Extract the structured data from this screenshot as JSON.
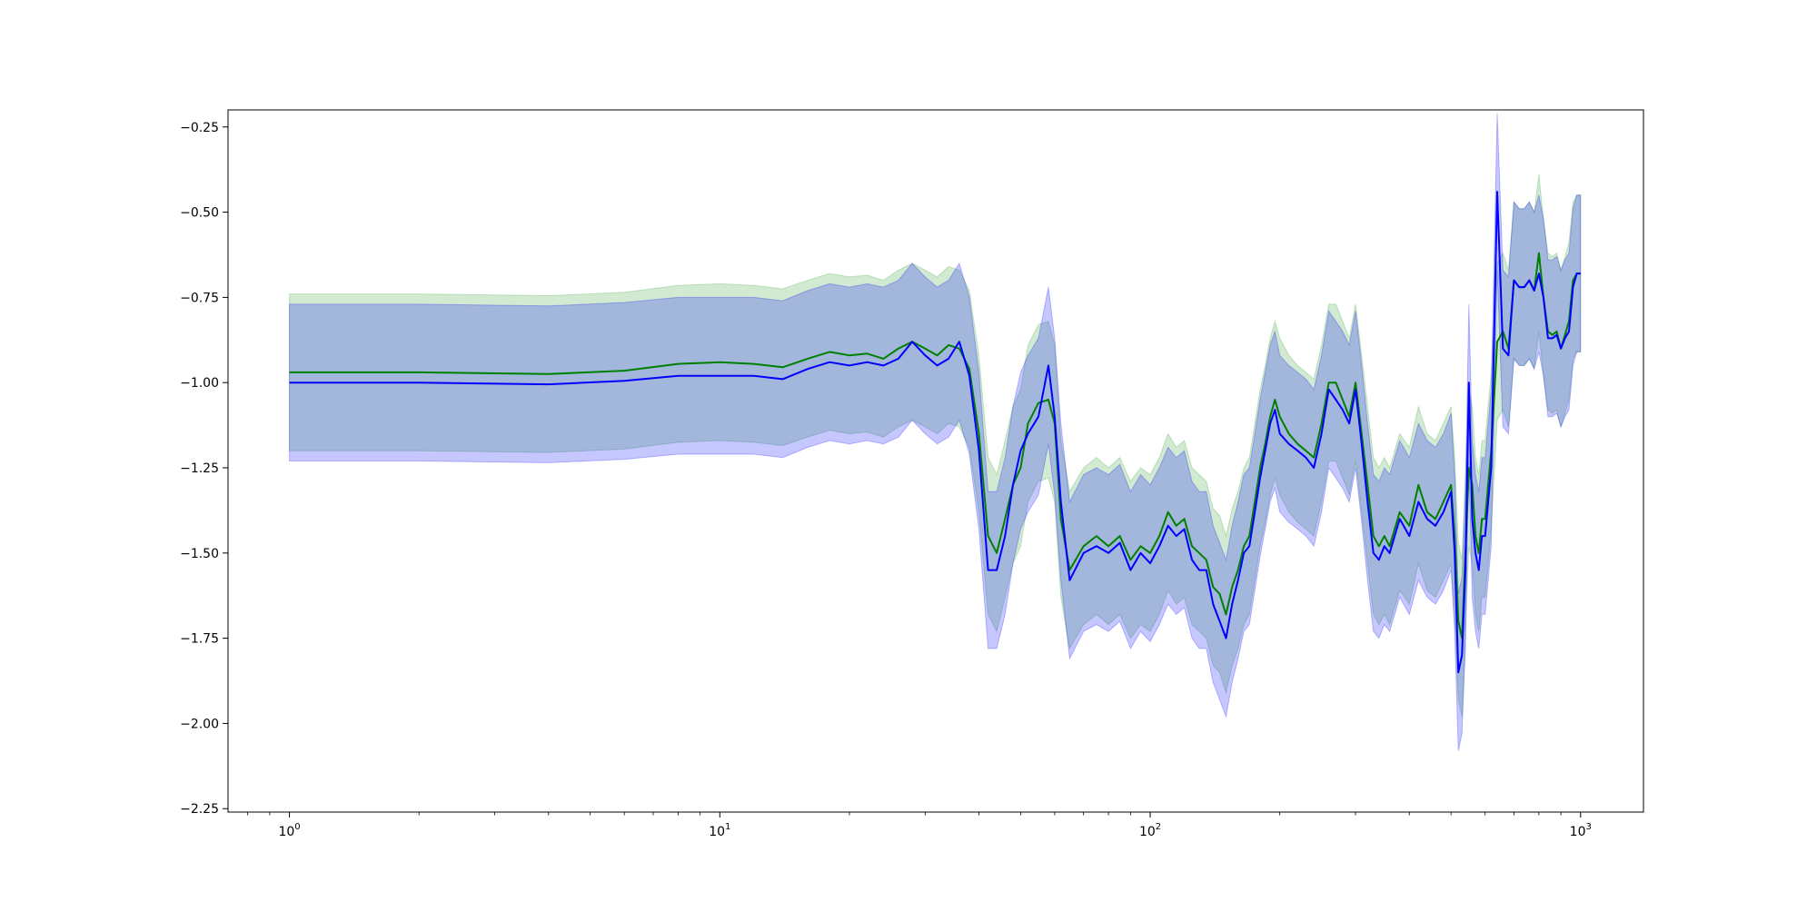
{
  "chart_data": {
    "type": "line",
    "title": "",
    "xlabel": "",
    "ylabel": "",
    "xscale": "log",
    "xlim": [
      0.72,
      1400
    ],
    "ylim": [
      -2.26,
      -0.2
    ],
    "grid": false,
    "x_ticks": [
      {
        "value": 1,
        "base": "10",
        "exp": "0"
      },
      {
        "value": 10,
        "base": "10",
        "exp": "1"
      },
      {
        "value": 100,
        "base": "10",
        "exp": "2"
      },
      {
        "value": 1000,
        "base": "10",
        "exp": "3"
      }
    ],
    "y_ticks": [
      {
        "value": -0.25,
        "label": "−0.25"
      },
      {
        "value": -0.5,
        "label": "−0.50"
      },
      {
        "value": -0.75,
        "label": "−0.75"
      },
      {
        "value": -1.0,
        "label": "−1.00"
      },
      {
        "value": -1.25,
        "label": "−1.25"
      },
      {
        "value": -1.5,
        "label": "−1.50"
      },
      {
        "value": -1.75,
        "label": "−1.75"
      },
      {
        "value": -2.0,
        "label": "−2.00"
      },
      {
        "value": -2.25,
        "label": "−2.25"
      }
    ],
    "series": [
      {
        "color": "#008000",
        "band_color": "#2ca02c",
        "band_halfwidth": 0.23,
        "x": [
          1,
          2,
          4,
          6,
          8,
          10,
          12,
          14,
          16,
          18,
          20,
          22,
          24,
          26,
          28,
          30,
          32,
          34,
          36,
          38,
          40,
          42,
          44,
          46,
          48,
          50,
          52,
          55,
          58,
          60,
          62,
          65,
          70,
          75,
          80,
          85,
          90,
          95,
          100,
          105,
          110,
          115,
          120,
          125,
          130,
          135,
          140,
          145,
          150,
          155,
          160,
          165,
          170,
          175,
          180,
          185,
          190,
          195,
          200,
          210,
          220,
          230,
          240,
          250,
          260,
          270,
          280,
          290,
          300,
          310,
          320,
          330,
          340,
          350,
          360,
          380,
          400,
          420,
          440,
          460,
          480,
          500,
          510,
          520,
          530,
          540,
          550,
          560,
          570,
          580,
          590,
          600,
          620,
          640,
          660,
          680,
          700,
          720,
          740,
          760,
          780,
          800,
          820,
          840,
          860,
          880,
          900,
          920,
          940,
          960,
          980,
          1000
        ],
        "y": [
          -0.97,
          -0.97,
          -0.975,
          -0.965,
          -0.945,
          -0.94,
          -0.945,
          -0.955,
          -0.93,
          -0.91,
          -0.92,
          -0.915,
          -0.93,
          -0.9,
          -0.88,
          -0.9,
          -0.92,
          -0.89,
          -0.9,
          -0.96,
          -1.15,
          -1.45,
          -1.5,
          -1.4,
          -1.3,
          -1.25,
          -1.12,
          -1.06,
          -1.05,
          -1.12,
          -1.4,
          -1.55,
          -1.48,
          -1.45,
          -1.48,
          -1.45,
          -1.52,
          -1.48,
          -1.5,
          -1.45,
          -1.38,
          -1.42,
          -1.4,
          -1.48,
          -1.5,
          -1.52,
          -1.6,
          -1.62,
          -1.68,
          -1.6,
          -1.55,
          -1.48,
          -1.45,
          -1.35,
          -1.25,
          -1.18,
          -1.1,
          -1.05,
          -1.1,
          -1.15,
          -1.18,
          -1.2,
          -1.22,
          -1.12,
          -1.0,
          -1.0,
          -1.05,
          -1.1,
          -1.0,
          -1.15,
          -1.3,
          -1.45,
          -1.48,
          -1.45,
          -1.48,
          -1.38,
          -1.42,
          -1.3,
          -1.38,
          -1.4,
          -1.35,
          -1.3,
          -1.45,
          -1.7,
          -1.75,
          -1.5,
          -1.25,
          -1.3,
          -1.45,
          -1.5,
          -1.4,
          -1.4,
          -1.2,
          -0.88,
          -0.85,
          -0.9,
          -0.7,
          -0.72,
          -0.72,
          -0.7,
          -0.73,
          -0.62,
          -0.75,
          -0.85,
          -0.86,
          -0.85,
          -0.9,
          -0.86,
          -0.82,
          -0.7,
          -0.68,
          -0.68
        ]
      },
      {
        "color": "#0000ff",
        "band_color": "#0000ff",
        "band_halfwidth": 0.23,
        "x": [
          1,
          2,
          4,
          6,
          8,
          10,
          12,
          14,
          16,
          18,
          20,
          22,
          24,
          26,
          28,
          30,
          32,
          34,
          36,
          38,
          40,
          42,
          44,
          46,
          48,
          50,
          52,
          55,
          58,
          60,
          62,
          65,
          70,
          75,
          80,
          85,
          90,
          95,
          100,
          105,
          110,
          115,
          120,
          125,
          130,
          135,
          140,
          145,
          150,
          155,
          160,
          165,
          170,
          175,
          180,
          185,
          190,
          195,
          200,
          210,
          220,
          230,
          240,
          250,
          260,
          270,
          280,
          290,
          300,
          310,
          320,
          330,
          340,
          350,
          360,
          380,
          400,
          420,
          440,
          460,
          480,
          500,
          510,
          520,
          530,
          540,
          550,
          560,
          570,
          580,
          590,
          600,
          620,
          640,
          660,
          680,
          700,
          720,
          740,
          760,
          780,
          800,
          820,
          840,
          860,
          880,
          900,
          920,
          940,
          960,
          980,
          1000
        ],
        "y": [
          -1.0,
          -1.0,
          -1.005,
          -0.995,
          -0.98,
          -0.98,
          -0.98,
          -0.99,
          -0.96,
          -0.94,
          -0.95,
          -0.94,
          -0.95,
          -0.93,
          -0.88,
          -0.92,
          -0.95,
          -0.93,
          -0.88,
          -0.98,
          -1.2,
          -1.55,
          -1.55,
          -1.45,
          -1.3,
          -1.2,
          -1.15,
          -1.1,
          -0.95,
          -1.1,
          -1.35,
          -1.58,
          -1.5,
          -1.48,
          -1.5,
          -1.47,
          -1.55,
          -1.5,
          -1.53,
          -1.48,
          -1.42,
          -1.45,
          -1.43,
          -1.52,
          -1.55,
          -1.55,
          -1.65,
          -1.7,
          -1.75,
          -1.65,
          -1.58,
          -1.5,
          -1.48,
          -1.38,
          -1.28,
          -1.2,
          -1.12,
          -1.08,
          -1.15,
          -1.18,
          -1.2,
          -1.22,
          -1.25,
          -1.15,
          -1.02,
          -1.05,
          -1.08,
          -1.12,
          -1.02,
          -1.18,
          -1.35,
          -1.5,
          -1.52,
          -1.48,
          -1.5,
          -1.4,
          -1.45,
          -1.35,
          -1.4,
          -1.42,
          -1.38,
          -1.32,
          -1.5,
          -1.85,
          -1.8,
          -1.55,
          -1.0,
          -1.4,
          -1.5,
          -1.55,
          -1.45,
          -1.45,
          -1.25,
          -0.44,
          -0.9,
          -0.92,
          -0.7,
          -0.72,
          -0.72,
          -0.7,
          -0.73,
          -0.68,
          -0.75,
          -0.87,
          -0.87,
          -0.86,
          -0.9,
          -0.87,
          -0.85,
          -0.72,
          -0.68,
          -0.68
        ]
      }
    ]
  }
}
